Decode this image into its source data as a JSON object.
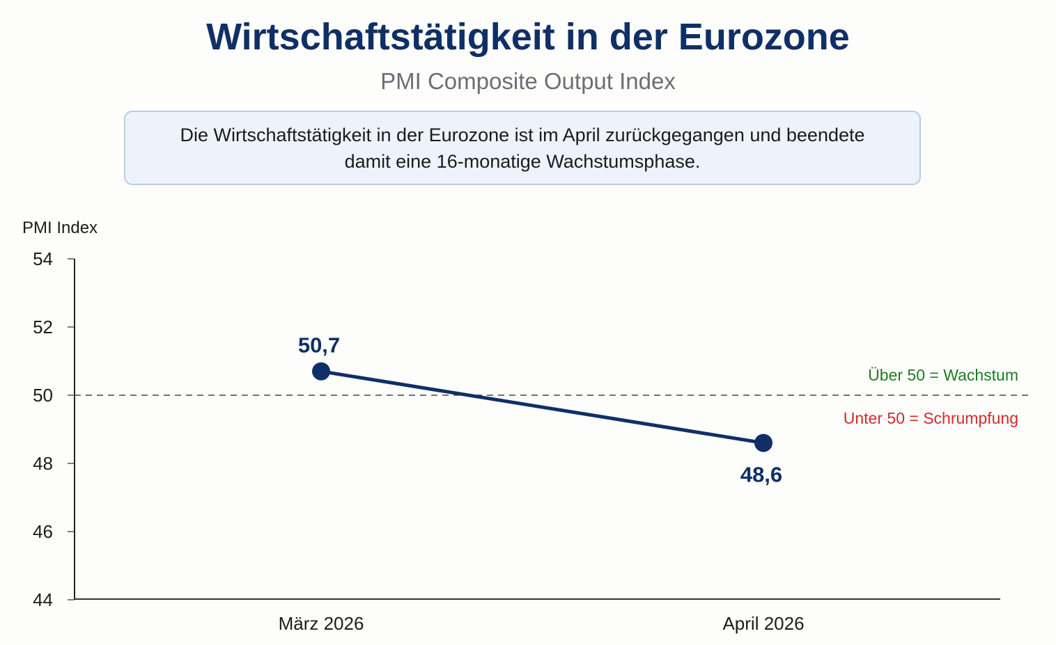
{
  "header": {
    "title": "Wirtschaftstätigkeit in der Eurozone",
    "subtitle": "PMI Composite Output Index"
  },
  "summary": {
    "text": "Die Wirtschaftstätigkeit in der Eurozone ist im April zurückgegangen und beendete damit eine 16-monatige Wachstumsphase."
  },
  "colors": {
    "title": "#0f2f66",
    "series": "#0f2f66",
    "growth": "#1f7a24",
    "contraction": "#d42a2a",
    "reference_line": "#444444"
  },
  "chart_data": {
    "type": "line",
    "title": "Wirtschaftstätigkeit in der Eurozone",
    "subtitle": "PMI Composite Output Index",
    "xlabel": "",
    "ylabel": "PMI Index",
    "categories": [
      "März 2026",
      "April 2026"
    ],
    "series": [
      {
        "name": "PMI Composite Output Index",
        "values": [
          50.7,
          48.6
        ],
        "labels": [
          "50,7",
          "48,6"
        ]
      }
    ],
    "ylim": [
      44,
      54
    ],
    "yticks": [
      44,
      46,
      48,
      50,
      52,
      54
    ],
    "ytick_labels": [
      "44",
      "46",
      "48",
      "50",
      "52",
      "54"
    ],
    "grid": false,
    "reference_line": {
      "value": 50,
      "style": "dashed",
      "label_above": "Über 50 = Wachstum",
      "label_below": "Unter 50 = Schrumpfung"
    },
    "legend": "none"
  }
}
